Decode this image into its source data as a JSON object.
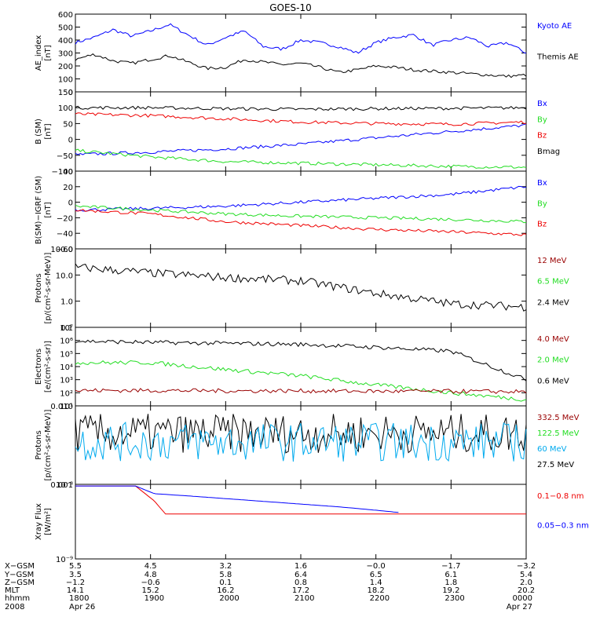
{
  "title": "GOES-10",
  "colors": {
    "blue": "#0000ff",
    "black": "#000000",
    "red": "#ee0000",
    "green": "#22dd22",
    "darkred": "#990000",
    "yellow": "#f0e000",
    "cyan": "#00aaee"
  },
  "chart_data": [
    {
      "type": "line",
      "ylabel": [
        "AE_index",
        "[nT]"
      ],
      "ylim": [
        0,
        600
      ],
      "yticks": [
        "0",
        "100",
        "200",
        "300",
        "400",
        "500",
        "600"
      ],
      "legend": [
        "Kyoto AE",
        "Themis AE"
      ],
      "series": [
        {
          "name": "Kyoto AE",
          "color": "blue",
          "x": [
            18.0,
            18.25,
            18.5,
            18.75,
            19.0,
            19.25,
            19.5,
            19.75,
            20.0,
            20.25,
            20.5,
            20.75,
            21.0,
            21.25,
            21.5,
            21.75,
            22.0,
            22.25,
            22.5,
            22.75,
            23.0,
            23.25,
            23.5,
            23.75,
            24.0
          ],
          "y": [
            380,
            420,
            480,
            430,
            470,
            520,
            440,
            360,
            420,
            470,
            350,
            330,
            400,
            380,
            350,
            300,
            380,
            420,
            440,
            360,
            400,
            420,
            350,
            380,
            300
          ]
        },
        {
          "name": "Themis AE",
          "color": "black",
          "x": [
            18.0,
            18.25,
            18.5,
            18.75,
            19.0,
            19.25,
            19.5,
            19.75,
            20.0,
            20.25,
            20.5,
            20.75,
            21.0,
            21.25,
            21.5,
            21.75,
            22.0,
            22.25,
            22.5,
            22.75,
            23.0,
            23.25,
            23.5,
            23.75,
            24.0
          ],
          "y": [
            250,
            290,
            240,
            220,
            250,
            280,
            230,
            180,
            190,
            250,
            230,
            210,
            220,
            190,
            150,
            170,
            200,
            190,
            170,
            160,
            150,
            140,
            130,
            120,
            130
          ]
        }
      ]
    },
    {
      "type": "line",
      "ylabel": [
        "B (SM)",
        "[nT]"
      ],
      "ylim": [
        -100,
        150
      ],
      "yticks": [
        "−100",
        "−50",
        "0",
        "50",
        "100",
        "150"
      ],
      "legend": [
        "Bx",
        "By",
        "Bz",
        "Bmag"
      ],
      "series": [
        {
          "name": "Bx",
          "color": "blue",
          "x": [
            18,
            19,
            20,
            21,
            22,
            23,
            24
          ],
          "y": [
            -48,
            -40,
            -30,
            -15,
            5,
            25,
            45
          ]
        },
        {
          "name": "By",
          "color": "green",
          "x": [
            18,
            19,
            20,
            21,
            22,
            23,
            24
          ],
          "y": [
            -35,
            -55,
            -70,
            -75,
            -80,
            -85,
            -88
          ]
        },
        {
          "name": "Bz",
          "color": "red",
          "x": [
            18,
            19,
            20,
            21,
            22,
            23,
            24
          ],
          "y": [
            80,
            75,
            65,
            55,
            50,
            48,
            55
          ]
        },
        {
          "name": "Bmag",
          "color": "black",
          "x": [
            18,
            19,
            20,
            21,
            22,
            23,
            24
          ],
          "y": [
            100,
            100,
            97,
            95,
            97,
            98,
            100
          ]
        }
      ]
    },
    {
      "type": "line",
      "ylabel": [
        "B(SM)−IGRF (SM)",
        "[nT]"
      ],
      "ylim": [
        -60,
        40
      ],
      "yticks": [
        "−60",
        "−40",
        "−20",
        "0",
        "20",
        "40"
      ],
      "legend": [
        "Bx",
        "By",
        "Bz"
      ],
      "series": [
        {
          "name": "Bx",
          "color": "blue",
          "x": [
            18,
            19,
            20,
            21,
            22,
            23,
            24
          ],
          "y": [
            -10,
            -8,
            -5,
            0,
            5,
            10,
            20
          ]
        },
        {
          "name": "By",
          "color": "green",
          "x": [
            18,
            19,
            20,
            21,
            22,
            23,
            24
          ],
          "y": [
            -5,
            -10,
            -15,
            -18,
            -20,
            -22,
            -25
          ]
        },
        {
          "name": "Bz",
          "color": "red",
          "x": [
            18,
            19,
            20,
            21,
            22,
            23,
            24
          ],
          "y": [
            -10,
            -15,
            -25,
            -30,
            -35,
            -38,
            -42
          ]
        }
      ]
    },
    {
      "type": "line",
      "ylabel": [
        "Protons",
        "[p/(cm²-s-sr-MeV)]"
      ],
      "yscale": "log",
      "ylim": [
        0.1,
        100
      ],
      "yticks": [
        "0.1",
        "1.0",
        "10.0",
        "100.0"
      ],
      "legend": [
        "12 MeV",
        "6.5 MeV",
        "2.4 MeV"
      ],
      "series": [
        {
          "name": "2.4 MeV",
          "color": "black",
          "x": [
            18,
            19,
            20,
            21,
            22,
            23,
            24
          ],
          "y": [
            20,
            12,
            8,
            6,
            2,
            0.8,
            0.6
          ]
        }
      ]
    },
    {
      "type": "line",
      "ylabel": [
        "Electrons",
        "[e/(cm²-s-sr)]"
      ],
      "yscale": "log",
      "ylim": [
        10,
        10000000
      ],
      "yticks": [
        "10¹",
        "10²",
        "10³",
        "10⁴",
        "10⁵",
        "10⁶",
        "10⁷"
      ],
      "legend": [
        "4.0 MeV",
        "2.0 MeV",
        "0.6 MeV"
      ],
      "series": [
        {
          "name": "0.6 MeV",
          "color": "black",
          "x": [
            18,
            19,
            20,
            21,
            22,
            23,
            24
          ],
          "y": [
            900000,
            700000,
            600000,
            500000,
            300000,
            150000,
            1000
          ]
        },
        {
          "name": "2.0 MeV",
          "color": "green",
          "x": [
            18,
            19,
            20,
            21,
            22,
            23,
            24
          ],
          "y": [
            20000,
            20000,
            6000,
            2000,
            400,
            100,
            30
          ]
        },
        {
          "name": "4.0 MeV",
          "color": "darkred",
          "x": [
            18,
            19,
            20,
            21,
            22,
            23,
            24
          ],
          "y": [
            150,
            150,
            140,
            140,
            130,
            130,
            120
          ]
        }
      ]
    },
    {
      "type": "line",
      "ylabel": [
        "Protons",
        "[p/(cm²-s-sr-MeV)]"
      ],
      "yscale": "log",
      "ylim": [
        0.001,
        0.1
      ],
      "yticks": [
        "0.001",
        "0.010"
      ],
      "legend": [
        "332.5 MeV",
        "122.5 MeV",
        "60 MeV",
        "27.5 MeV"
      ],
      "series": [
        {
          "name": "27.5 MeV",
          "color": "black",
          "x": [
            18,
            19,
            20,
            21,
            22,
            23,
            24
          ],
          "y": [
            0.02,
            0.02,
            0.02,
            0.02,
            0.02,
            0.02,
            0.02
          ]
        },
        {
          "name": "60 MeV",
          "color": "cyan",
          "x": [
            18,
            19,
            20,
            21,
            22,
            23,
            24
          ],
          "y": [
            0.012,
            0.012,
            0.012,
            0.012,
            0.012,
            0.012,
            0.012
          ]
        }
      ]
    },
    {
      "type": "line",
      "ylabel": [
        "Xray Flux",
        "[W/m²]"
      ],
      "yscale": "log",
      "ylim": [
        1e-09,
        1e-08
      ],
      "yticks": [
        "10⁻⁹",
        "10⁻⁸"
      ],
      "legend": [
        "0.1−0.8 nm",
        "0.05−0.3 nm"
      ],
      "series": [
        {
          "name": "0.1−0.8 nm",
          "color": "red",
          "x": [
            18.0,
            18.8,
            19.05,
            19.2,
            22.2,
            22.4,
            24.0
          ],
          "y": [
            9.5e-09,
            9.5e-09,
            6e-09,
            4e-09,
            4e-09,
            4e-09,
            4e-09
          ]
        },
        {
          "name": "0.05−0.3 nm",
          "color": "blue",
          "x": [
            18.0,
            18.8,
            19.05,
            19.5,
            21.5,
            22.0,
            22.3
          ],
          "y": [
            9.5e-09,
            9.5e-09,
            7.5e-09,
            7e-09,
            5e-09,
            4.5e-09,
            4.2e-09
          ]
        }
      ]
    }
  ],
  "footer": {
    "labels": [
      "X−GSM",
      "Y−GSM",
      "Z−GSM",
      "MLT",
      "hhmm",
      "2008"
    ],
    "columns": [
      [
        "5.5",
        "3.5",
        "−1.2",
        "14.1",
        "1800",
        "Apr 26"
      ],
      [
        "4.5",
        "4.8",
        "−0.6",
        "15.2",
        "1900",
        ""
      ],
      [
        "3.2",
        "5.8",
        "0.1",
        "16.2",
        "2000",
        ""
      ],
      [
        "1.6",
        "6.4",
        "0.8",
        "17.2",
        "2100",
        ""
      ],
      [
        "−0.0",
        "6.5",
        "1.4",
        "18.2",
        "2200",
        ""
      ],
      [
        "−1.7",
        "6.1",
        "1.8",
        "19.2",
        "2300",
        ""
      ],
      [
        "−3.2",
        "5.4",
        "2.0",
        "20.2",
        "0000",
        "Apr 27"
      ]
    ]
  }
}
